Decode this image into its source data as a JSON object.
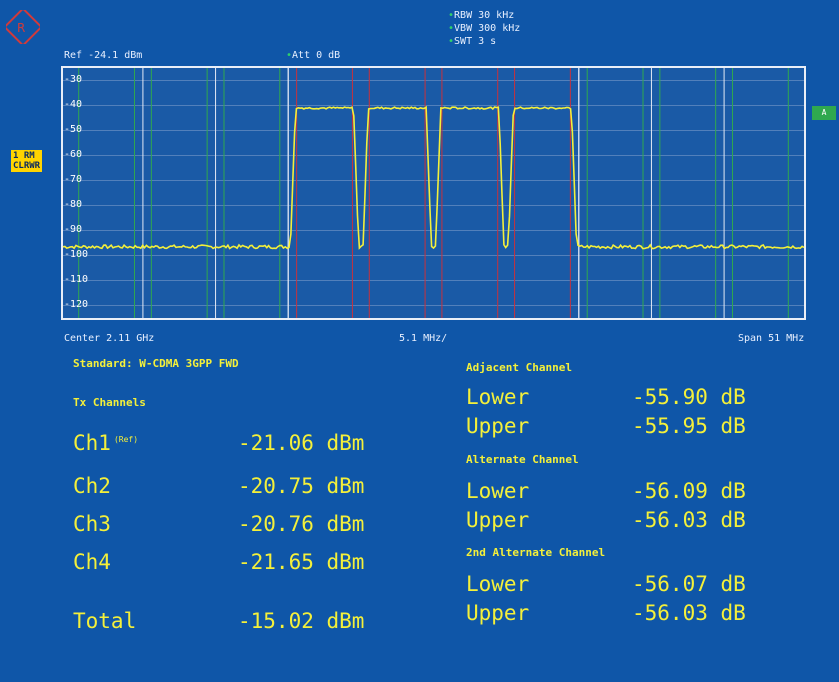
{
  "header": {
    "ref": "Ref -24.1 dBm",
    "att": "Att  0 dB",
    "rbw": "RBW 30 kHz",
    "vbw": "VBW 300 kHz",
    "swt": "SWT 3 s"
  },
  "side": {
    "trace_label": "1 RM",
    "trace_mode": "CLRWR",
    "marker_tag": "A"
  },
  "y_labels": [
    "-30",
    "-40",
    "-50",
    "-60",
    "-70",
    "-80",
    "-90",
    "-100",
    "-110",
    "-120"
  ],
  "footer": {
    "center": "Center 2.11 GHz",
    "div": "5.1 MHz/",
    "span": "Span 51 MHz"
  },
  "standard": "Standard: W-CDMA 3GPP FWD",
  "tx": {
    "title": "Tx Channels",
    "ref_tag": "(Ref)",
    "rows": [
      {
        "name": "Ch1",
        "value": "-21.06 dBm"
      },
      {
        "name": "Ch2",
        "value": "-20.75 dBm"
      },
      {
        "name": "Ch3",
        "value": "-20.76 dBm"
      },
      {
        "name": "Ch4",
        "value": "-21.65 dBm"
      }
    ],
    "total_label": "Total",
    "total_value": "-15.02 dBm"
  },
  "adjacent": {
    "title": "Adjacent Channel",
    "rows": [
      {
        "name": "Lower",
        "value": "-55.90 dB"
      },
      {
        "name": "Upper",
        "value": "-55.95 dB"
      }
    ]
  },
  "alternate": {
    "title": "Alternate Channel",
    "rows": [
      {
        "name": "Lower",
        "value": "-56.09 dB"
      },
      {
        "name": "Upper",
        "value": "-56.03 dB"
      }
    ]
  },
  "alternate2": {
    "title": "2nd Alternate Channel",
    "rows": [
      {
        "name": "Lower",
        "value": "-56.07 dB"
      },
      {
        "name": "Upper",
        "value": "-56.03 dB"
      }
    ]
  },
  "colors": {
    "background": "#0f56a8",
    "trace": "#f4f03a",
    "channel_lines": "#e3e9f5",
    "channel_edge": "#c8323c",
    "adjacent_lines": "#2fa84f"
  }
}
